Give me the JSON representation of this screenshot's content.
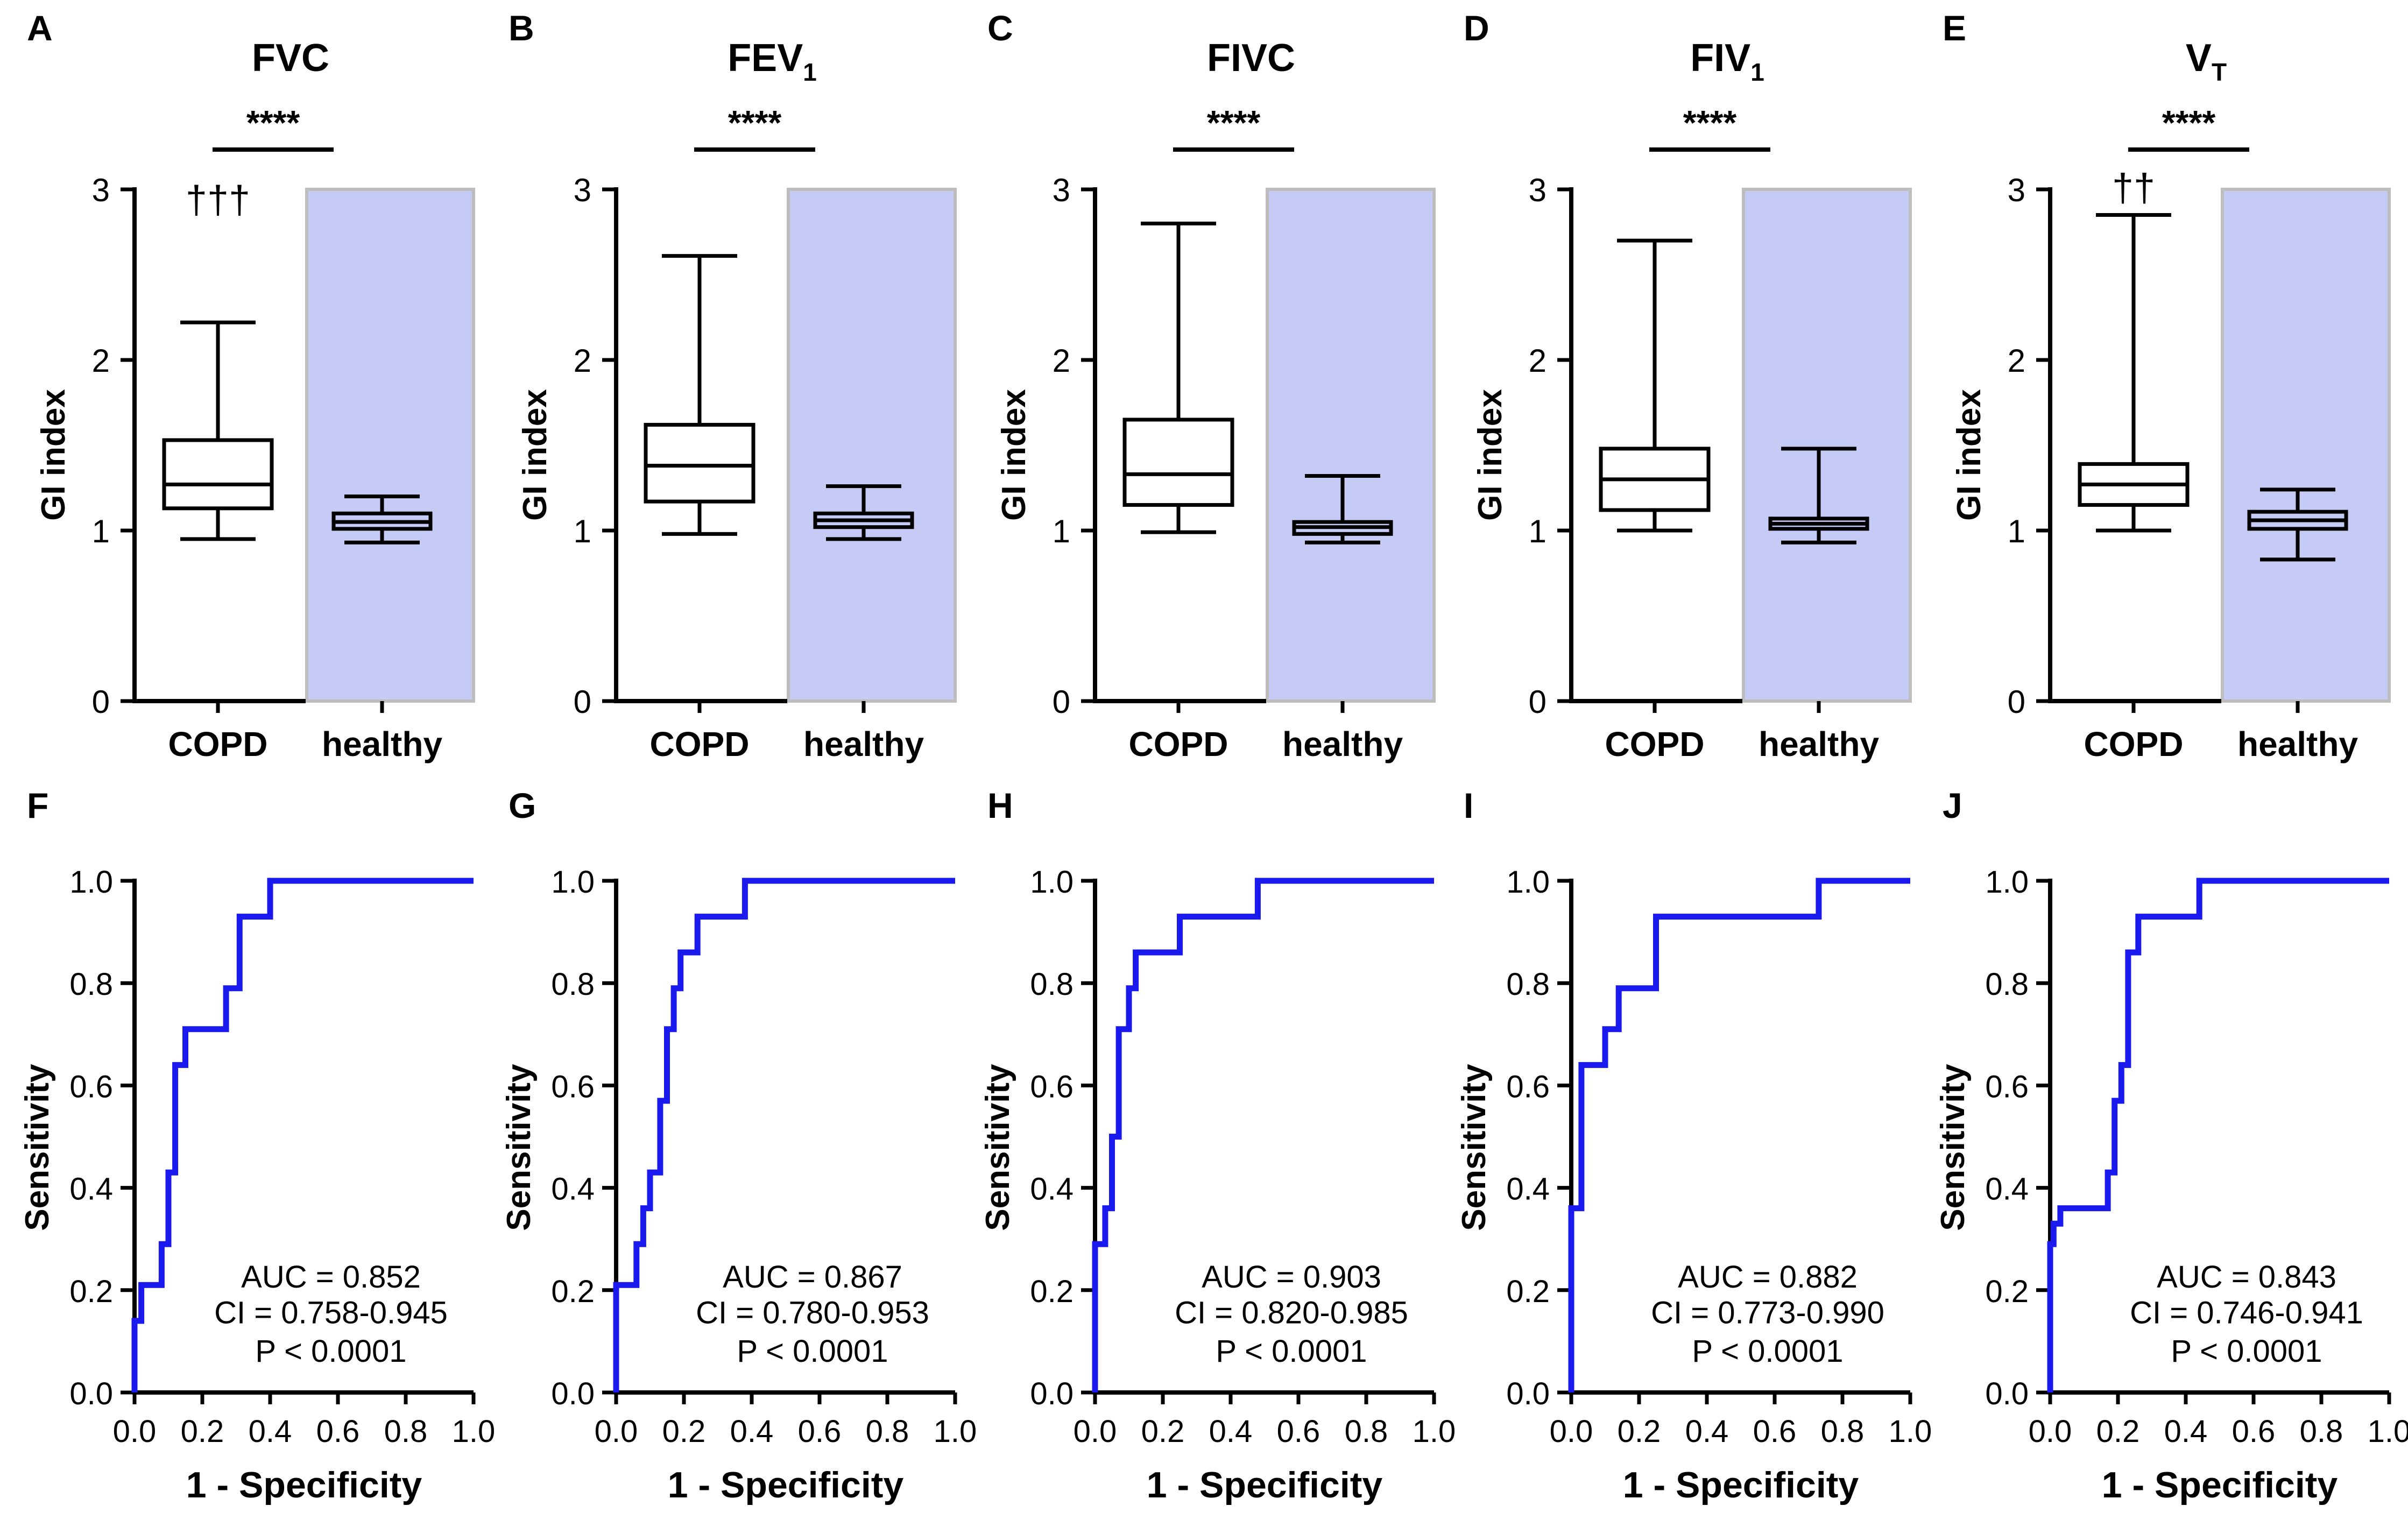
{
  "colors": {
    "roc_line": "#1a1aee",
    "healthy_band": "#c6cbf5",
    "band_border": "#bdbdbd",
    "axis": "#000000"
  },
  "chart_data": [
    {
      "type": "box",
      "panel": "A",
      "title": "FVC",
      "title_sub": "",
      "ylabel": "GI index",
      "ylim": [
        0,
        3
      ],
      "yticks": [
        "0",
        "1",
        "2",
        "3"
      ],
      "categories": [
        "COPD",
        "healthy"
      ],
      "boxes": [
        {
          "min": 0.95,
          "q1": 1.13,
          "median": 1.27,
          "q3": 1.53,
          "max": 2.22
        },
        {
          "min": 0.93,
          "q1": 1.01,
          "median": 1.05,
          "q3": 1.1,
          "max": 1.2
        }
      ],
      "significance": "****",
      "annotation": "†††",
      "annotation_value": 2.95
    },
    {
      "type": "box",
      "panel": "B",
      "title": "FEV",
      "title_sub": "1",
      "ylabel": "GI index",
      "ylim": [
        0,
        3
      ],
      "yticks": [
        "0",
        "1",
        "2",
        "3"
      ],
      "categories": [
        "COPD",
        "healthy"
      ],
      "boxes": [
        {
          "min": 0.98,
          "q1": 1.17,
          "median": 1.38,
          "q3": 1.62,
          "max": 2.61
        },
        {
          "min": 0.95,
          "q1": 1.02,
          "median": 1.06,
          "q3": 1.1,
          "max": 1.26
        }
      ],
      "significance": "****",
      "annotation": "",
      "annotation_value": 0
    },
    {
      "type": "box",
      "panel": "C",
      "title": "FIVC",
      "title_sub": "",
      "ylabel": "GI index",
      "ylim": [
        0,
        3
      ],
      "yticks": [
        "0",
        "1",
        "2",
        "3"
      ],
      "categories": [
        "COPD",
        "healthy"
      ],
      "boxes": [
        {
          "min": 0.99,
          "q1": 1.15,
          "median": 1.33,
          "q3": 1.65,
          "max": 2.8
        },
        {
          "min": 0.93,
          "q1": 0.98,
          "median": 1.02,
          "q3": 1.05,
          "max": 1.32
        }
      ],
      "significance": "****",
      "annotation": "",
      "annotation_value": 0
    },
    {
      "type": "box",
      "panel": "D",
      "title": "FIV",
      "title_sub": "1",
      "ylabel": "GI index",
      "ylim": [
        0,
        3
      ],
      "yticks": [
        "0",
        "1",
        "2",
        "3"
      ],
      "categories": [
        "COPD",
        "healthy"
      ],
      "boxes": [
        {
          "min": 1.0,
          "q1": 1.12,
          "median": 1.3,
          "q3": 1.48,
          "max": 2.7
        },
        {
          "min": 0.93,
          "q1": 1.01,
          "median": 1.04,
          "q3": 1.07,
          "max": 1.48
        }
      ],
      "significance": "****",
      "annotation": "",
      "annotation_value": 0
    },
    {
      "type": "box",
      "panel": "E",
      "title": "V",
      "title_sub": "T",
      "ylabel": "GI index",
      "ylim": [
        0,
        3
      ],
      "yticks": [
        "0",
        "1",
        "2",
        "3"
      ],
      "categories": [
        "COPD",
        "healthy"
      ],
      "boxes": [
        {
          "min": 1.0,
          "q1": 1.15,
          "median": 1.27,
          "q3": 1.39,
          "max": 2.85
        },
        {
          "min": 0.83,
          "q1": 1.01,
          "median": 1.06,
          "q3": 1.11,
          "max": 1.24
        }
      ],
      "significance": "****",
      "annotation": "††",
      "annotation_value": 3.02
    },
    {
      "type": "line",
      "panel": "F",
      "xlabel": "1 - Specificity",
      "ylabel": "Sensitivity",
      "xlim": [
        0,
        1
      ],
      "ylim": [
        0,
        1
      ],
      "xticks": [
        "0.0",
        "0.2",
        "0.4",
        "0.6",
        "0.8",
        "1.0"
      ],
      "yticks": [
        "0.0",
        "0.2",
        "0.4",
        "0.6",
        "0.8",
        "1.0"
      ],
      "auc": "AUC = 0.852",
      "ci": "CI = 0.758-0.945",
      "p": "P < 0.0001",
      "x": [
        0,
        0,
        0.02,
        0.02,
        0.08,
        0.08,
        0.1,
        0.1,
        0.12,
        0.12,
        0.15,
        0.15,
        0.27,
        0.27,
        0.31,
        0.31,
        0.4,
        0.4,
        1.0
      ],
      "y": [
        0,
        0.14,
        0.14,
        0.21,
        0.21,
        0.29,
        0.29,
        0.43,
        0.43,
        0.64,
        0.64,
        0.71,
        0.71,
        0.79,
        0.79,
        0.93,
        0.93,
        1.0,
        1.0
      ]
    },
    {
      "type": "line",
      "panel": "G",
      "xlabel": "1 - Specificity",
      "ylabel": "Sensitivity",
      "xlim": [
        0,
        1
      ],
      "ylim": [
        0,
        1
      ],
      "xticks": [
        "0.0",
        "0.2",
        "0.4",
        "0.6",
        "0.8",
        "1.0"
      ],
      "yticks": [
        "0.0",
        "0.2",
        "0.4",
        "0.6",
        "0.8",
        "1.0"
      ],
      "auc": "AUC = 0.867",
      "ci": "CI = 0.780-0.953",
      "p": "P  < 0.0001",
      "x": [
        0,
        0,
        0.06,
        0.06,
        0.08,
        0.08,
        0.1,
        0.1,
        0.13,
        0.13,
        0.15,
        0.15,
        0.17,
        0.17,
        0.19,
        0.19,
        0.22,
        0.22,
        0.24,
        0.24,
        0.38,
        0.38,
        1.0
      ],
      "y": [
        0,
        0.21,
        0.21,
        0.29,
        0.29,
        0.36,
        0.36,
        0.43,
        0.43,
        0.57,
        0.57,
        0.71,
        0.71,
        0.79,
        0.79,
        0.86,
        0.86,
        0.86,
        0.86,
        0.93,
        0.93,
        1.0,
        1.0
      ]
    },
    {
      "type": "line",
      "panel": "H",
      "xlabel": "1 - Specificity",
      "ylabel": "Sensitivity",
      "xlim": [
        0,
        1
      ],
      "ylim": [
        0,
        1
      ],
      "xticks": [
        "0.0",
        "0.2",
        "0.4",
        "0.6",
        "0.8",
        "1.0"
      ],
      "yticks": [
        "0.0",
        "0.2",
        "0.4",
        "0.6",
        "0.8",
        "1.0"
      ],
      "auc": "AUC = 0.903",
      "ci": "CI = 0.820-0.985",
      "p": "P  < 0.0001",
      "x": [
        0,
        0,
        0.03,
        0.03,
        0.05,
        0.05,
        0.07,
        0.07,
        0.1,
        0.1,
        0.12,
        0.12,
        0.25,
        0.25,
        0.48,
        0.48,
        1.0
      ],
      "y": [
        0,
        0.29,
        0.29,
        0.36,
        0.36,
        0.5,
        0.5,
        0.71,
        0.71,
        0.79,
        0.79,
        0.86,
        0.86,
        0.93,
        0.93,
        1.0,
        1.0
      ]
    },
    {
      "type": "line",
      "panel": "I",
      "xlabel": "1 - Specificity",
      "ylabel": "Sensitivity",
      "xlim": [
        0,
        1
      ],
      "ylim": [
        0,
        1
      ],
      "xticks": [
        "0.0",
        "0.2",
        "0.4",
        "0.6",
        "0.8",
        "1.0"
      ],
      "yticks": [
        "0.0",
        "0.2",
        "0.4",
        "0.6",
        "0.8",
        "1.0"
      ],
      "auc": "AUC = 0.882",
      "ci": "CI = 0.773-0.990",
      "p": "P  < 0.0001",
      "x": [
        0,
        0,
        0.03,
        0.03,
        0.1,
        0.1,
        0.14,
        0.14,
        0.25,
        0.25,
        0.73,
        0.73,
        1.0
      ],
      "y": [
        0,
        0.36,
        0.36,
        0.64,
        0.64,
        0.71,
        0.71,
        0.79,
        0.79,
        0.93,
        0.93,
        1.0,
        1.0
      ]
    },
    {
      "type": "line",
      "panel": "J",
      "xlabel": "1 - Specificity",
      "ylabel": "Sensitivity",
      "xlim": [
        0,
        1
      ],
      "ylim": [
        0,
        1
      ],
      "xticks": [
        "0.0",
        "0.2",
        "0.4",
        "0.6",
        "0.8",
        "1.0"
      ],
      "yticks": [
        "0.0",
        "0.2",
        "0.4",
        "0.6",
        "0.8",
        "1.0"
      ],
      "auc": "AUC = 0.843",
      "ci": "CI = 0.746-0.941",
      "p": "P < 0.0001",
      "x": [
        0,
        0,
        0.01,
        0.01,
        0.03,
        0.03,
        0.17,
        0.17,
        0.19,
        0.19,
        0.21,
        0.21,
        0.23,
        0.23,
        0.26,
        0.26,
        0.44,
        0.44,
        1.0
      ],
      "y": [
        0,
        0.29,
        0.29,
        0.33,
        0.33,
        0.36,
        0.36,
        0.43,
        0.43,
        0.57,
        0.57,
        0.64,
        0.64,
        0.86,
        0.86,
        0.93,
        0.93,
        1.0,
        1.0
      ]
    }
  ]
}
